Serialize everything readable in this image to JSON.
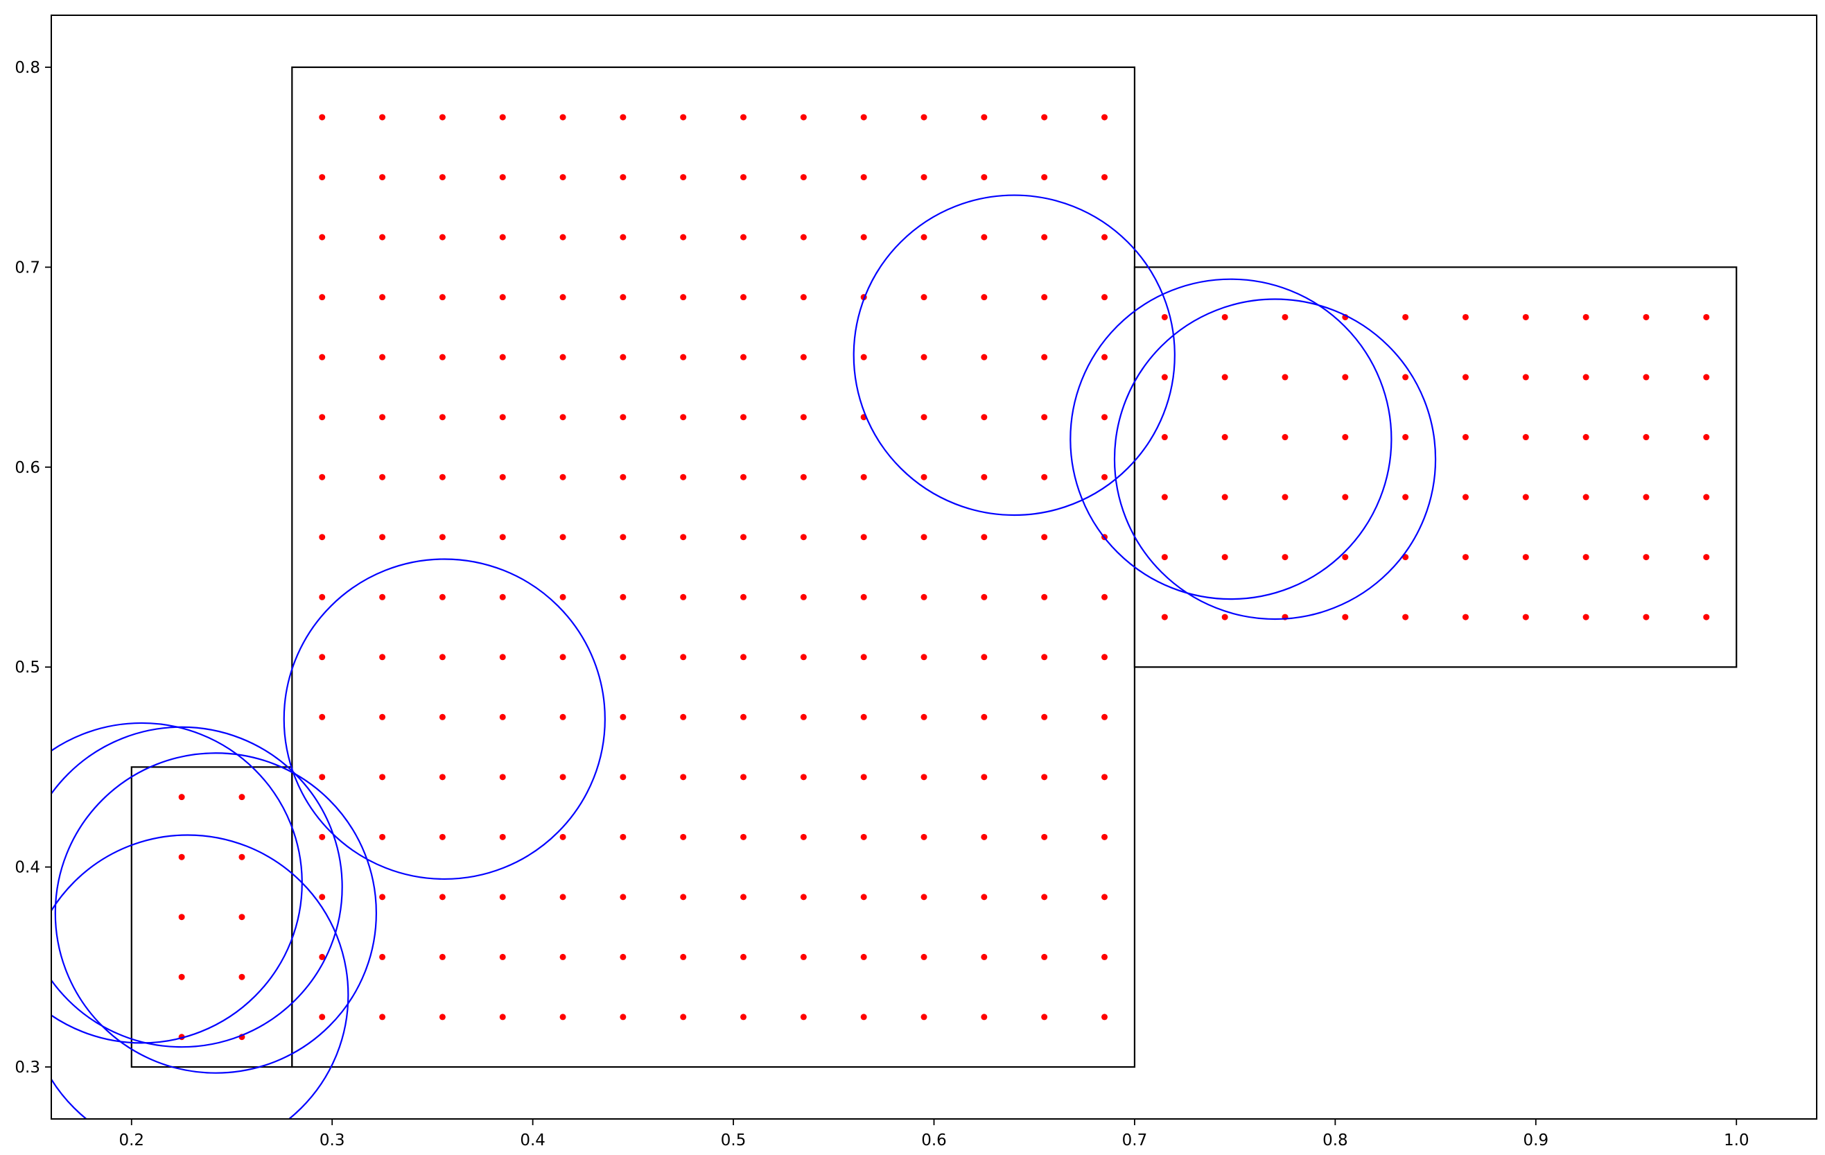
{
  "chart_data": {
    "type": "scatter",
    "title": "",
    "xlabel": "",
    "ylabel": "",
    "xlim": [
      0.16,
      1.04
    ],
    "ylim": [
      0.274,
      0.826
    ],
    "grid": false,
    "x_ticks": [
      "0.2",
      "0.3",
      "0.4",
      "0.5",
      "0.6",
      "0.7",
      "0.8",
      "0.9",
      "1.0"
    ],
    "y_ticks": [
      "0.3",
      "0.4",
      "0.5",
      "0.6",
      "0.7",
      "0.8"
    ],
    "rectangles": [
      {
        "x0": 0.28,
        "y0": 0.3,
        "x1": 0.7,
        "y1": 0.8
      },
      {
        "x0": 0.7,
        "y0": 0.5,
        "x1": 1.0,
        "y1": 0.7
      },
      {
        "x0": 0.2,
        "y0": 0.3,
        "x1": 0.28,
        "y1": 0.45
      }
    ],
    "point_grids": [
      {
        "x_start": 0.295,
        "x_step": 0.03,
        "x_count": 14,
        "y_start": 0.325,
        "y_step": 0.03,
        "y_count": 16
      },
      {
        "x_start": 0.715,
        "x_step": 0.03,
        "x_count": 10,
        "y_start": 0.525,
        "y_step": 0.03,
        "y_count": 6
      },
      {
        "x_start": 0.225,
        "x_step": 0.03,
        "x_count": 2,
        "y_start": 0.315,
        "y_step": 0.03,
        "y_count": 5
      }
    ],
    "circles": [
      {
        "cx": 0.64,
        "cy": 0.656,
        "r": 0.08
      },
      {
        "cx": 0.748,
        "cy": 0.614,
        "r": 0.08
      },
      {
        "cx": 0.77,
        "cy": 0.604,
        "r": 0.08
      },
      {
        "cx": 0.356,
        "cy": 0.474,
        "r": 0.08
      },
      {
        "cx": 0.205,
        "cy": 0.392,
        "r": 0.08
      },
      {
        "cx": 0.225,
        "cy": 0.39,
        "r": 0.08
      },
      {
        "cx": 0.242,
        "cy": 0.377,
        "r": 0.08
      },
      {
        "cx": 0.228,
        "cy": 0.336,
        "r": 0.08
      }
    ],
    "colors": {
      "points": "#ff0000",
      "circles": "#0000ff",
      "rectangles": "#000000",
      "axes": "#000000"
    }
  }
}
